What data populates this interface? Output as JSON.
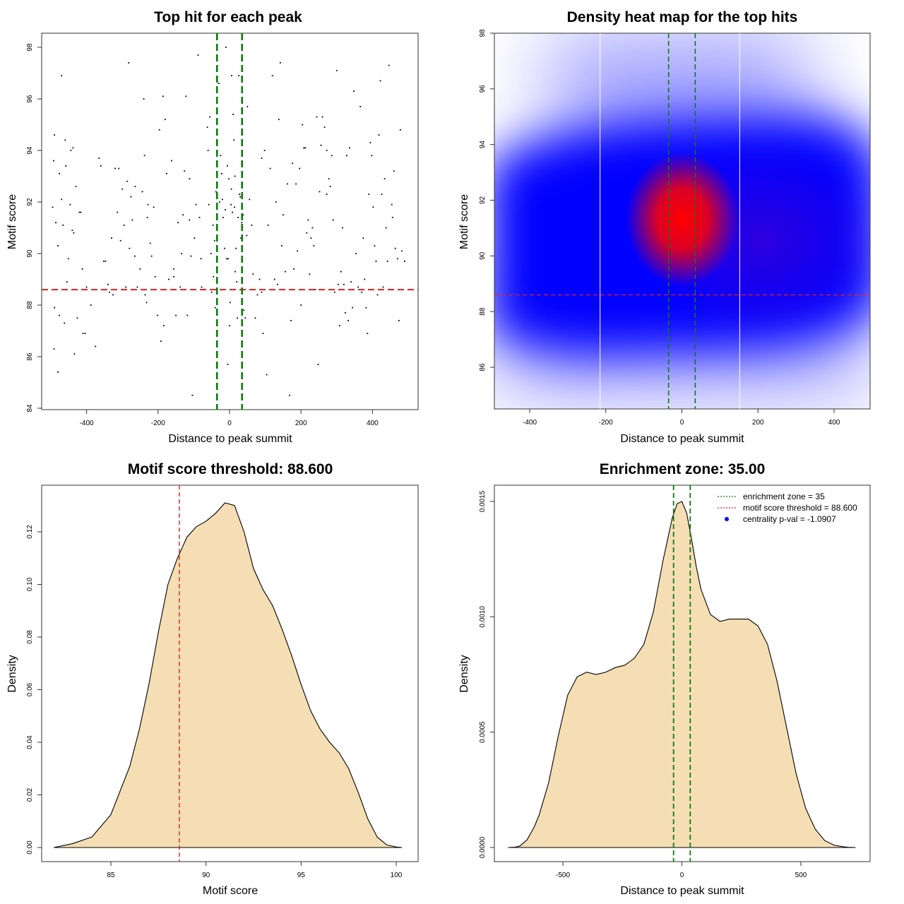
{
  "chart_data": [
    {
      "type": "scatter",
      "title": "Top hit for each peak",
      "xlabel": "Distance to peak summit",
      "ylabel": "Motif score",
      "xlim": [
        -500,
        500
      ],
      "ylim": [
        84,
        98.5
      ],
      "x_ticks": [
        "-400",
        "-200",
        "0",
        "200",
        "400"
      ],
      "y_ticks": [
        "84",
        "86",
        "88",
        "90",
        "92",
        "94",
        "96",
        "98"
      ],
      "hlines": [
        {
          "y": 88.6,
          "color": "#dd2222",
          "style": "dashed"
        }
      ],
      "vlines": [
        {
          "x": -35,
          "color": "#117711",
          "style": "dashed"
        },
        {
          "x": 35,
          "color": "#117711",
          "style": "dashed"
        }
      ],
      "points": [
        [
          -490,
          94.6
        ],
        [
          -492,
          93.6
        ],
        [
          -495,
          91.8
        ],
        [
          -486,
          91.2
        ],
        [
          -480,
          90.3
        ],
        [
          -490,
          87.9
        ],
        [
          -491,
          86.3
        ],
        [
          -480,
          85.4
        ],
        [
          -476,
          87.6
        ],
        [
          -470,
          96.9
        ],
        [
          -476,
          93.1
        ],
        [
          -470,
          92.1
        ],
        [
          -466,
          91.1
        ],
        [
          -460,
          94.4
        ],
        [
          -458,
          93.4
        ],
        [
          -462,
          87.3
        ],
        [
          -455,
          88.9
        ],
        [
          -451,
          89.8
        ],
        [
          -446,
          91.9
        ],
        [
          -444,
          94.0
        ],
        [
          -440,
          90.9
        ],
        [
          -436,
          90.8
        ],
        [
          -434,
          88.6
        ],
        [
          -430,
          92.6
        ],
        [
          -426,
          87.5
        ],
        [
          -434,
          86.1
        ],
        [
          -420,
          91.6
        ],
        [
          -416,
          91.6
        ],
        [
          -412,
          89.4
        ],
        [
          -410,
          86.9
        ],
        [
          -404,
          86.9
        ],
        [
          -438,
          94.1
        ],
        [
          -400,
          88.7
        ],
        [
          -388,
          88.0
        ],
        [
          -375,
          86.4
        ],
        [
          -365,
          93.7
        ],
        [
          -360,
          93.4
        ],
        [
          -352,
          89.7
        ],
        [
          -347,
          89.7
        ],
        [
          -340,
          88.8
        ],
        [
          -336,
          88.5
        ],
        [
          -330,
          90.6
        ],
        [
          -326,
          88.4
        ],
        [
          -320,
          93.3
        ],
        [
          -314,
          91.6
        ],
        [
          -310,
          93.3
        ],
        [
          -305,
          90.5
        ],
        [
          -300,
          92.5
        ],
        [
          -295,
          91.1
        ],
        [
          -290,
          88.7
        ],
        [
          -286,
          92.8
        ],
        [
          -282,
          97.4
        ],
        [
          -280,
          90.2
        ],
        [
          -276,
          92.2
        ],
        [
          -272,
          91.3
        ],
        [
          -265,
          89.9
        ],
        [
          -258,
          88.7
        ],
        [
          -250,
          89.4
        ],
        [
          -244,
          92.4
        ],
        [
          -240,
          96.0
        ],
        [
          -238,
          93.8
        ],
        [
          -236,
          88.4
        ],
        [
          -232,
          88.1
        ],
        [
          -228,
          91.9
        ],
        [
          -222,
          90.4
        ],
        [
          -218,
          89.9
        ],
        [
          -212,
          91.8
        ],
        [
          -208,
          89.1
        ],
        [
          -202,
          87.6
        ],
        [
          -196,
          94.8
        ],
        [
          -192,
          86.6
        ],
        [
          -186,
          96.1
        ],
        [
          -184,
          87.2
        ],
        [
          -180,
          95.2
        ],
        [
          -176,
          93.1
        ],
        [
          -170,
          89.0
        ],
        [
          -162,
          93.6
        ],
        [
          -156,
          89.1
        ],
        [
          -150,
          87.6
        ],
        [
          -144,
          91.2
        ],
        [
          -138,
          88.7
        ],
        [
          -134,
          90.0
        ],
        [
          -130,
          91.5
        ],
        [
          -126,
          93.2
        ],
        [
          -122,
          96.1
        ],
        [
          -118,
          87.6
        ],
        [
          -112,
          91.3
        ],
        [
          -108,
          89.9
        ],
        [
          -104,
          84.5
        ],
        [
          -98,
          90.6
        ],
        [
          -94,
          91.9
        ],
        [
          -88,
          97.7
        ],
        [
          -84,
          91.4
        ],
        [
          -78,
          88.7
        ],
        [
          -72,
          88.6
        ],
        [
          -60,
          94.0
        ],
        [
          -55,
          95.3
        ],
        [
          -50,
          88.5
        ],
        [
          -45,
          89.1
        ],
        [
          -40,
          87.9
        ],
        [
          -36,
          94.3
        ],
        [
          -30,
          96.6
        ],
        [
          -25,
          93.8
        ],
        [
          -20,
          92.1
        ],
        [
          -14,
          90.2
        ],
        [
          -8,
          89.8
        ],
        [
          -4,
          89.8
        ],
        [
          -62,
          94.9
        ],
        [
          -5,
          85.7
        ],
        [
          0,
          87.2
        ],
        [
          5,
          92.5
        ],
        [
          8,
          91.6
        ],
        [
          10,
          95.4
        ],
        [
          12,
          94.4
        ],
        [
          15,
          93.0
        ],
        [
          18,
          90.2
        ],
        [
          20,
          88.9
        ],
        [
          22,
          87.5
        ],
        [
          26,
          96.9
        ],
        [
          30,
          92.2
        ],
        [
          32,
          90.6
        ],
        [
          36,
          89.0
        ],
        [
          40,
          87.8
        ],
        [
          -58,
          91.9
        ],
        [
          -52,
          90.0
        ],
        [
          -46,
          91.1
        ],
        [
          -42,
          90.5
        ],
        [
          -38,
          92.4
        ],
        [
          -28,
          92.0
        ],
        [
          -22,
          93.1
        ],
        [
          -18,
          91.4
        ],
        [
          -12,
          91.7
        ],
        [
          -6,
          93.4
        ],
        [
          -2,
          92.9
        ],
        [
          4,
          91.9
        ],
        [
          14,
          91.8
        ],
        [
          24,
          91.4
        ],
        [
          28,
          92.3
        ],
        [
          34,
          91.2
        ],
        [
          38,
          91.5
        ],
        [
          6,
          96.9
        ],
        [
          2,
          88.1
        ],
        [
          16,
          89.3
        ],
        [
          44,
          87.5
        ],
        [
          48,
          90.7
        ],
        [
          -80,
          89.8
        ],
        [
          -10,
          98.0
        ],
        [
          50,
          95.7
        ],
        [
          56,
          92.1
        ],
        [
          62,
          91.1
        ],
        [
          66,
          89.2
        ],
        [
          72,
          87.5
        ],
        [
          78,
          88.4
        ],
        [
          84,
          89.0
        ],
        [
          90,
          93.7
        ],
        [
          94,
          86.9
        ],
        [
          98,
          94.0
        ],
        [
          104,
          85.3
        ],
        [
          108,
          91.1
        ],
        [
          114,
          93.3
        ],
        [
          120,
          96.9
        ],
        [
          126,
          89.0
        ],
        [
          130,
          92.0
        ],
        [
          134,
          88.8
        ],
        [
          138,
          95.2
        ],
        [
          142,
          97.4
        ],
        [
          146,
          90.3
        ],
        [
          150,
          91.5
        ],
        [
          156,
          89.3
        ],
        [
          162,
          92.7
        ],
        [
          168,
          84.5
        ],
        [
          172,
          87.4
        ],
        [
          176,
          93.5
        ],
        [
          180,
          89.4
        ],
        [
          186,
          92.7
        ],
        [
          190,
          90.1
        ],
        [
          196,
          93.3
        ],
        [
          200,
          88.0
        ],
        [
          204,
          95.0
        ],
        [
          208,
          94.1
        ],
        [
          212,
          94.1
        ],
        [
          216,
          90.8
        ],
        [
          220,
          91.3
        ],
        [
          224,
          89.2
        ],
        [
          228,
          90.6
        ],
        [
          232,
          91.0
        ],
        [
          236,
          90.3
        ],
        [
          240,
          88.6
        ],
        [
          244,
          95.3
        ],
        [
          248,
          85.7
        ],
        [
          252,
          92.4
        ],
        [
          256,
          94.2
        ],
        [
          260,
          95.3
        ],
        [
          266,
          94.9
        ],
        [
          272,
          94.0
        ],
        [
          278,
          92.9
        ],
        [
          282,
          92.6
        ],
        [
          286,
          93.8
        ],
        [
          290,
          91.3
        ],
        [
          294,
          88.5
        ],
        [
          300,
          97.1
        ],
        [
          304,
          88.8
        ],
        [
          308,
          87.2
        ],
        [
          312,
          89.3
        ],
        [
          316,
          91.0
        ],
        [
          320,
          88.8
        ],
        [
          324,
          87.7
        ],
        [
          328,
          93.8
        ],
        [
          332,
          87.4
        ],
        [
          336,
          94.1
        ],
        [
          340,
          88.9
        ],
        [
          344,
          87.9
        ],
        [
          348,
          96.3
        ],
        [
          354,
          90.0
        ],
        [
          360,
          88.7
        ],
        [
          366,
          95.7
        ],
        [
          370,
          88.5
        ],
        [
          374,
          90.6
        ],
        [
          378,
          89.0
        ],
        [
          382,
          87.9
        ],
        [
          386,
          86.9
        ],
        [
          390,
          92.3
        ],
        [
          394,
          94.3
        ],
        [
          398,
          93.8
        ],
        [
          402,
          91.8
        ],
        [
          406,
          90.3
        ],
        [
          410,
          89.7
        ],
        [
          414,
          88.4
        ],
        [
          418,
          94.6
        ],
        [
          422,
          96.7
        ],
        [
          426,
          92.3
        ],
        [
          430,
          88.7
        ],
        [
          434,
          92.9
        ],
        [
          438,
          91.0
        ],
        [
          442,
          89.7
        ],
        [
          446,
          97.3
        ],
        [
          450,
          88.6
        ],
        [
          454,
          91.9
        ],
        [
          456,
          91.4
        ],
        [
          460,
          93.2
        ],
        [
          464,
          90.2
        ],
        [
          470,
          89.8
        ],
        [
          474,
          87.4
        ],
        [
          478,
          94.8
        ],
        [
          482,
          90.1
        ],
        [
          490,
          89.7
        ],
        [
          272,
          92.3
        ],
        [
          -230,
          91.4
        ],
        [
          -264,
          92.6
        ],
        [
          -156,
          89.4
        ],
        [
          90,
          88.5
        ],
        [
          -112,
          92.9
        ]
      ]
    },
    {
      "type": "heatmap",
      "title": "Density heat map for the top hits",
      "xlabel": "Distance to peak summit",
      "ylabel": "Motif score",
      "xlim": [
        -490,
        490
      ],
      "ylim": [
        84.5,
        98
      ],
      "x_ticks": [
        "-400",
        "-200",
        "0",
        "200",
        "400"
      ],
      "y_ticks": [
        "86",
        "88",
        "90",
        "92",
        "94",
        "96",
        "98"
      ],
      "colors": {
        "low": "#ffffff",
        "mid": "#0000ff",
        "high": "#ff0000"
      },
      "white_vlines": [
        -215,
        152
      ],
      "hlines": [
        {
          "y": 88.6,
          "color": "#dd2222",
          "style": "dashed"
        }
      ],
      "vlines": [
        {
          "x": -35,
          "color": "#117711",
          "style": "dashed"
        },
        {
          "x": 35,
          "color": "#117711",
          "style": "dashed"
        }
      ],
      "density_peak": {
        "x": 0,
        "y": 91.3
      }
    },
    {
      "type": "area",
      "title": "Motif score threshold: 88.600",
      "xlabel": "Motif score",
      "ylabel": "Density",
      "xlim": [
        82,
        100.5
      ],
      "ylim": [
        0,
        0.133
      ],
      "x_ticks": [
        "85",
        "90",
        "95",
        "100"
      ],
      "y_ticks": [
        "0.00",
        "0.02",
        "0.04",
        "0.06",
        "0.08",
        "0.10",
        "0.12"
      ],
      "fill": "#f5deb3",
      "vlines": [
        {
          "x": 88.6,
          "color": "#dd2222",
          "style": "dashed"
        }
      ],
      "x": [
        82.0,
        83.0,
        84.0,
        85.0,
        86.0,
        86.5,
        87.0,
        87.5,
        88.0,
        88.5,
        89.0,
        89.5,
        90.0,
        90.5,
        91.0,
        91.5,
        92.0,
        92.5,
        93.0,
        93.5,
        94.0,
        94.5,
        95.0,
        95.5,
        96.0,
        96.5,
        97.0,
        97.5,
        98.0,
        98.5,
        99.0,
        99.5,
        100.0,
        100.3
      ],
      "y": [
        0.0,
        0.0015,
        0.004,
        0.0125,
        0.031,
        0.045,
        0.062,
        0.082,
        0.1,
        0.11,
        0.118,
        0.122,
        0.124,
        0.127,
        0.131,
        0.13,
        0.12,
        0.106,
        0.098,
        0.092,
        0.083,
        0.073,
        0.062,
        0.052,
        0.045,
        0.04,
        0.036,
        0.03,
        0.021,
        0.011,
        0.004,
        0.001,
        0.0002,
        0.0
      ]
    },
    {
      "type": "area",
      "title": "Enrichment zone: 35.00",
      "xlabel": "Distance to peak summit",
      "ylabel": "Density",
      "xlim": [
        -725,
        725
      ],
      "ylim": [
        0,
        0.00155
      ],
      "x_ticks": [
        "-500",
        "0",
        "500"
      ],
      "y_ticks": [
        "0.0000",
        "0.0005",
        "0.0010",
        "0.0015"
      ],
      "fill": "#f5deb3",
      "vlines": [
        {
          "x": -35,
          "color": "#117711",
          "style": "dashed"
        },
        {
          "x": 35,
          "color": "#117711",
          "style": "dashed"
        }
      ],
      "x": [
        -730,
        -700,
        -680,
        -650,
        -620,
        -600,
        -560,
        -520,
        -480,
        -440,
        -400,
        -360,
        -320,
        -280,
        -240,
        -200,
        -160,
        -120,
        -80,
        -40,
        -20,
        0,
        20,
        40,
        60,
        80,
        120,
        160,
        200,
        240,
        280,
        320,
        360,
        400,
        440,
        480,
        520,
        560,
        600,
        640,
        680,
        700,
        730
      ],
      "y": [
        0,
        1.5e-06,
        7e-06,
        3.4e-05,
        9e-05,
        0.00014,
        0.00028,
        0.00048,
        0.00066,
        0.00074,
        0.00076,
        0.00075,
        0.00076,
        0.00078,
        0.00079,
        0.00082,
        0.00088,
        0.00102,
        0.00124,
        0.00143,
        0.00149,
        0.0015,
        0.00145,
        0.00134,
        0.00122,
        0.00112,
        0.00101,
        0.00098,
        0.00099,
        0.00099,
        0.00099,
        0.00096,
        0.00088,
        0.00072,
        0.00052,
        0.00032,
        0.00017,
        8e-05,
        3e-05,
        1e-05,
        3e-06,
        1e-06,
        0
      ],
      "legend": {
        "position": "top-right",
        "entries": [
          {
            "label": "enrichment zone = 35",
            "color": "#117711",
            "style": "dotted-line"
          },
          {
            "label": "motif score threshold = 88.600",
            "color": "#dd2222",
            "style": "dotted-line"
          },
          {
            "label": "centrality p-val = -1.0907",
            "color": "#0000ff",
            "style": "point"
          }
        ]
      }
    }
  ]
}
